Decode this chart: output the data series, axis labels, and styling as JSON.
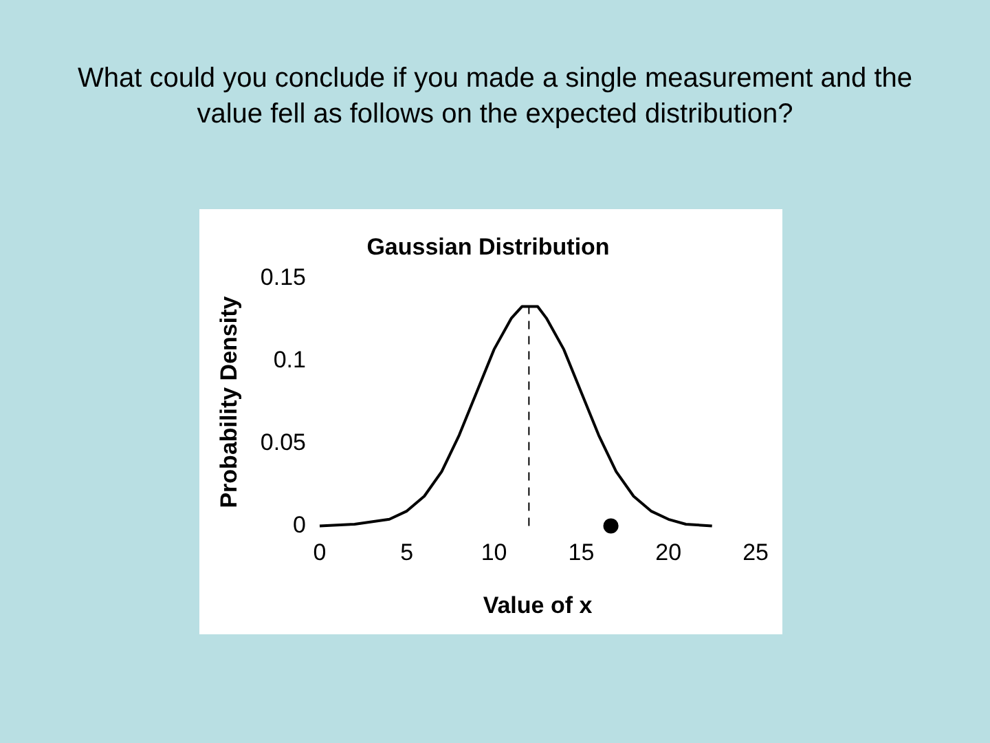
{
  "chart_data": {
    "type": "line",
    "title": "Gaussian Distribution",
    "xlabel": "Value of x",
    "ylabel": "Probability Density",
    "annotations": [
      "What could you conclude if you made a single measurement and the value fell as follows on the expected distribution?"
    ],
    "xlim": [
      0,
      25
    ],
    "xticks": [
      0,
      5,
      10,
      15,
      20,
      25
    ],
    "ylim": [
      0,
      0.15
    ],
    "yticks": [
      0,
      0.05,
      0.1,
      0.15
    ],
    "grid": false,
    "legend": false,
    "series": [
      {
        "type": "line",
        "color": "#000000",
        "marker": "none",
        "line_style": "solid",
        "x": [
          0,
          2,
          4,
          5,
          6,
          7,
          8,
          9,
          10,
          11,
          11.6,
          12.5,
          13,
          14,
          15,
          16,
          17,
          18,
          19,
          20,
          21,
          22.5
        ],
        "values": [
          0,
          0.001,
          0.004,
          0.009,
          0.018,
          0.033,
          0.055,
          0.081,
          0.107,
          0.126,
          0.133,
          0.133,
          0.126,
          0.107,
          0.081,
          0.055,
          0.033,
          0.018,
          0.009,
          0.004,
          0.001,
          0
        ]
      },
      {
        "type": "scatter",
        "color": "#000000",
        "marker": "circle",
        "x": [
          16.7
        ],
        "values": [
          0
        ]
      }
    ],
    "ref_lines": [
      {
        "axis": "x",
        "value": 12,
        "color": "#000000",
        "line_style": "dashed"
      }
    ]
  }
}
